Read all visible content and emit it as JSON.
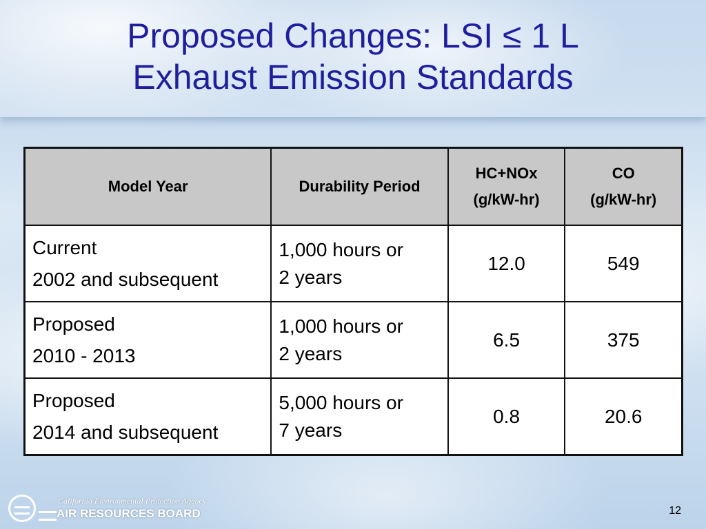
{
  "slide": {
    "title_line1": "Proposed Changes: LSI ≤ 1 L",
    "title_line2": "Exhaust Emission Standards",
    "page_number": "12"
  },
  "table": {
    "headers": {
      "model_year": "Model Year",
      "durability": "Durability Period",
      "hcnox_line1": "HC+NOx",
      "hcnox_line2": "(g/kW-hr)",
      "co_line1": "CO",
      "co_line2": "(g/kW-hr)"
    },
    "rows": [
      {
        "status": "Current",
        "years": "2002 and subsequent",
        "durability_line1": "1,000 hours or",
        "durability_line2": "2 years",
        "hcnox": "12.0",
        "co": "549"
      },
      {
        "status": "Proposed",
        "years": "2010 - 2013",
        "durability_line1": "1,000 hours or",
        "durability_line2": "2 years",
        "hcnox": "6.5",
        "co": "375"
      },
      {
        "status": "Proposed",
        "years": "2014 and subsequent",
        "durability_line1": "5,000 hours or",
        "durability_line2": "7 years",
        "hcnox": "0.8",
        "co": "20.6"
      }
    ]
  },
  "footer": {
    "agency": "California Environmental Protection Agency",
    "board": "AIR RESOURCES BOARD",
    "logo_icon": "carb-logo-icon"
  }
}
